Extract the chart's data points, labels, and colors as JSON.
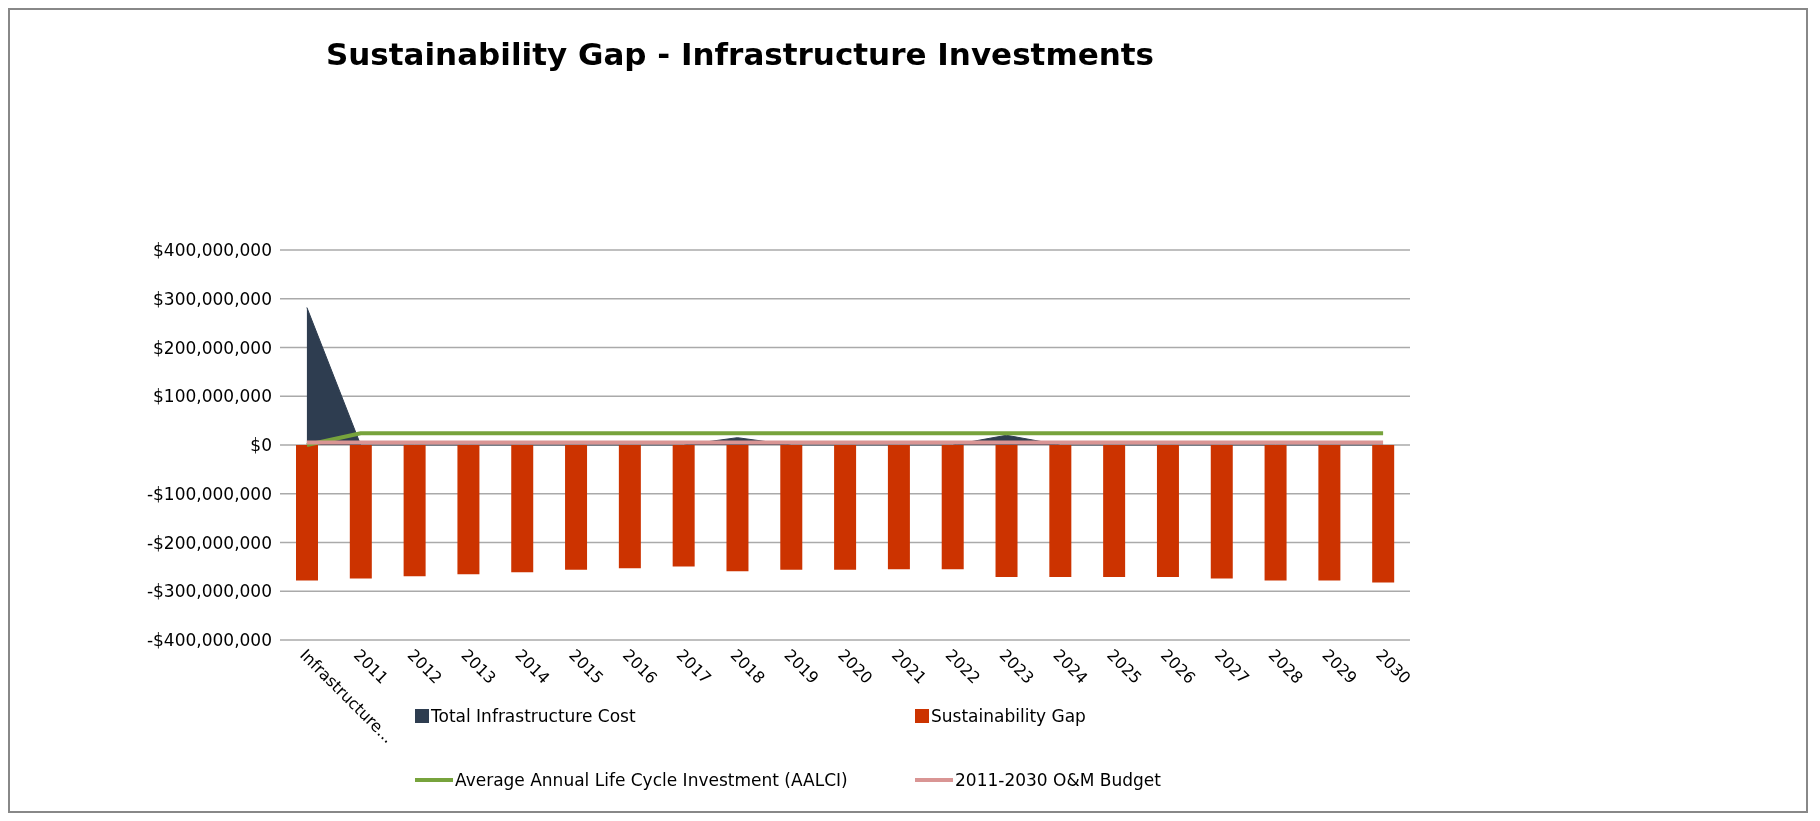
{
  "chart_data": {
    "type": "bar",
    "title": "Sustainability Gap - Infrastructure Investments",
    "categories": [
      "Infrastructure...",
      "2011",
      "2012",
      "2013",
      "2014",
      "2015",
      "2016",
      "2017",
      "2018",
      "2019",
      "2020",
      "2021",
      "2022",
      "2023",
      "2024",
      "2025",
      "2026",
      "2027",
      "2028",
      "2029",
      "2030"
    ],
    "series": [
      {
        "name": "Total Infrastructure Cost",
        "type": "area",
        "color": "#2e3d50",
        "values": [
          282000000,
          0,
          0,
          0,
          0,
          0,
          0,
          0,
          15000000,
          0,
          0,
          0,
          0,
          20000000,
          0,
          0,
          0,
          0,
          0,
          0,
          0
        ]
      },
      {
        "name": "Sustainability Gap",
        "color": "#cc3300",
        "values": [
          -278000000,
          -274000000,
          -269000000,
          -265000000,
          -261000000,
          -256000000,
          -253000000,
          -249000000,
          -259000000,
          -256000000,
          -256000000,
          -255000000,
          -255000000,
          -271000000,
          -271000000,
          -271000000,
          -271000000,
          -274000000,
          -278000000,
          -278000000,
          -282000000
        ]
      },
      {
        "name": "Average Annual Life Cycle Investment (AALCI)",
        "type": "line",
        "color": "#77a33c",
        "values": [
          0,
          24000000,
          24000000,
          24000000,
          24000000,
          24000000,
          24000000,
          24000000,
          24000000,
          24000000,
          24000000,
          24000000,
          24000000,
          24000000,
          24000000,
          24000000,
          24000000,
          24000000,
          24000000,
          24000000,
          24000000
        ]
      },
      {
        "name": "2011-2030 O&M Budget",
        "type": "line",
        "color": "#d99594",
        "values": [
          5000000,
          5000000,
          5000000,
          5000000,
          5000000,
          5000000,
          5000000,
          5000000,
          5000000,
          5000000,
          5000000,
          5000000,
          5000000,
          5000000,
          5000000,
          5000000,
          5000000,
          5000000,
          5000000,
          5000000,
          5000000
        ]
      }
    ],
    "ylim": [
      -400000000,
      400000000
    ],
    "yticks": [
      {
        "value": -400000000,
        "label": "-$400,000,000"
      },
      {
        "value": -300000000,
        "label": "-$300,000,000"
      },
      {
        "value": -200000000,
        "label": "-$200,000,000"
      },
      {
        "value": -100000000,
        "label": "-$100,000,000"
      },
      {
        "value": 0,
        "label": "$0"
      },
      {
        "value": 100000000,
        "label": "$100,000,000"
      },
      {
        "value": 200000000,
        "label": "$200,000,000"
      },
      {
        "value": 300000000,
        "label": "$300,000,000"
      },
      {
        "value": 400000000,
        "label": "$400,000,000"
      }
    ],
    "grid": "y",
    "legend": "bottom",
    "marker": "none",
    "line_style": "solid"
  }
}
